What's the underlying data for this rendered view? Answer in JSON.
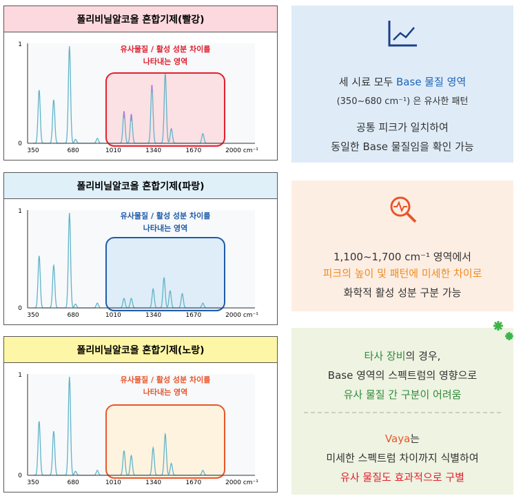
{
  "charts": [
    {
      "header": "폴리비닐알코올 혼합기제(빨강)",
      "header_bg": "#fbd9de",
      "annotation": [
        "유사물질 / 활성 성분 차이를",
        "나타내는 영역"
      ],
      "color": "#e0202e",
      "region_fill": "#fbe0e4"
    },
    {
      "header": "폴리비닐알코올 혼합기제(파랑)",
      "header_bg": "#dff0f9",
      "annotation": [
        "유사물질 / 활성 성분 차이를",
        "나타내는 영역"
      ],
      "color": "#1f5aa8",
      "region_fill": "#deedf8"
    },
    {
      "header": "폴리비닐알코올 혼합기제(노랑)",
      "header_bg": "#fdf6a6",
      "annotation": [
        "유사물질 / 활성 성분 차이를",
        "나타내는 영역"
      ],
      "color": "#e8552a",
      "region_fill": "#fdf3df"
    }
  ],
  "axis": {
    "xticks": [
      "350",
      "680",
      "1010",
      "1340",
      "1670",
      "2000 cm⁻¹"
    ],
    "yticks": [
      "1",
      "0"
    ]
  },
  "panels": [
    {
      "bg": "#dfecf8",
      "lines": [
        [
          {
            "text": "세 시료 모두 "
          },
          {
            "text": "Base 물질 영역",
            "color": "#1c63b7"
          }
        ],
        [
          {
            "text": "(350~680 cm⁻¹) 은 유사한 패턴"
          }
        ],
        [
          {
            "text": "공통 피크가 일치하여"
          }
        ],
        [
          {
            "text": "동일한 Base 물질임을 확인 가능"
          }
        ]
      ]
    },
    {
      "bg": "#fdeee4",
      "lines": [
        [
          {
            "text": "1,100~1,700 cm⁻¹  영역에서"
          }
        ],
        [
          {
            "text": "피크의 높이 및 패턴에 미세한 차이로",
            "color": "#f08a1c"
          }
        ],
        [
          {
            "text": "화학적 활성 성분 구분 가능"
          }
        ]
      ]
    },
    {
      "bg": "#eef3e2",
      "lines": [
        [
          {
            "text": "타사 장비",
            "color": "#2f8a3a"
          },
          {
            "text": "의 경우,"
          }
        ],
        [
          {
            "text": "Base 영역의 스펙트럼의 영향으로"
          }
        ],
        [
          {
            "text": "유사 물질 간 구분이 어려움",
            "color": "#2f8a3a"
          }
        ],
        [
          {
            "text": "Vaya",
            "color": "#e8552a"
          },
          {
            "text": "는"
          }
        ],
        [
          {
            "text": "미세한 스펙트럼 차이까지 식별하여"
          }
        ],
        [
          {
            "text": "유사 물질도 효과적으로 구별",
            "color": "#e0202e"
          }
        ]
      ]
    }
  ]
}
